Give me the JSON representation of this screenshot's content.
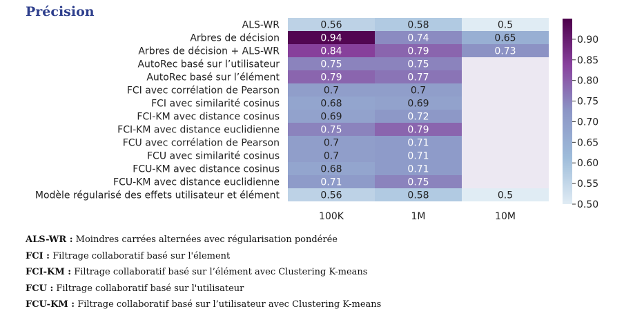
{
  "title": "Précision",
  "chart_data": {
    "type": "heatmap",
    "rows": [
      "ALS-WR",
      "Arbres de décision",
      "Arbres de décision + ALS-WR",
      "AutoRec basé sur l’utilisateur",
      "AutoRec basé sur l’élément",
      "FCI avec corrélation de Pearson",
      "FCI avec similarité cosinus",
      "FCI-KM avec distance cosinus",
      "FCI-KM avec distance euclidienne",
      "FCU avec corrélation de Pearson",
      "FCU avec similarité cosinus",
      "FCU-KM avec distance cosinus",
      "FCU-KM avec distance euclidienne",
      "Modèle régularisé des effets utilisateur et élément"
    ],
    "columns": [
      "100K",
      "1M",
      "10M"
    ],
    "values": [
      [
        "0.56",
        "0.58",
        "0.5"
      ],
      [
        "0.94",
        "0.74",
        "0.65"
      ],
      [
        "0.84",
        "0.79",
        "0.73"
      ],
      [
        "0.75",
        "0.75",
        null
      ],
      [
        "0.79",
        "0.77",
        null
      ],
      [
        "0.7",
        "0.7",
        null
      ],
      [
        "0.68",
        "0.69",
        null
      ],
      [
        "0.69",
        "0.72",
        null
      ],
      [
        "0.75",
        "0.79",
        null
      ],
      [
        "0.7",
        "0.71",
        null
      ],
      [
        "0.7",
        "0.71",
        null
      ],
      [
        "0.68",
        "0.71",
        null
      ],
      [
        "0.71",
        "0.75",
        null
      ],
      [
        "0.56",
        "0.58",
        "0.5"
      ]
    ],
    "colorbar": {
      "range": [
        0.5,
        0.95
      ],
      "ticks": [
        "0.50",
        "0.55",
        "0.60",
        "0.65",
        "0.70",
        "0.75",
        "0.80",
        "0.85",
        "0.90"
      ],
      "colormap": "BuPu",
      "missing_color": "#ece8f2"
    }
  },
  "legend": [
    {
      "abbr": "ALS-WR :",
      "text": "Moindres carrées alternées avec régularisation pondérée"
    },
    {
      "abbr": "FCI :",
      "text": "Filtrage collaboratif basé sur l'élement"
    },
    {
      "abbr": "FCI-KM :",
      "text": "Filtrage collaboratif basé sur l’élément avec Clustering K-means"
    },
    {
      "abbr": "FCU :",
      "text": "Filtrage collaboratif basé sur l'utilisateur"
    },
    {
      "abbr": "FCU-KM :",
      "text": "Filtrage collaboratif basé sur l’utilisateur avec Clustering K-means"
    }
  ]
}
